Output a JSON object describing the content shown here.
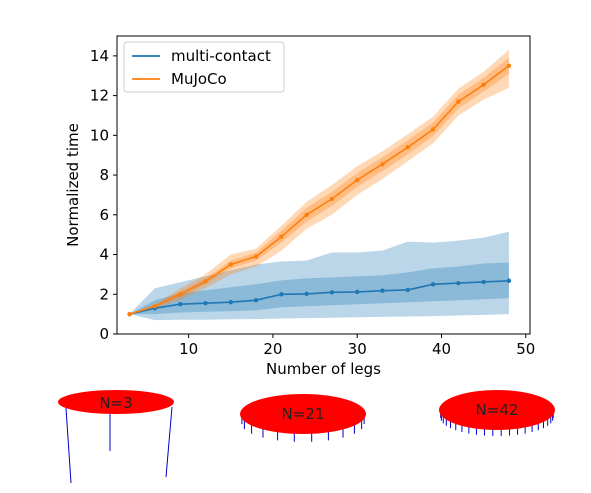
{
  "chart_data": {
    "type": "line",
    "xlabel": "Number of legs",
    "ylabel": "Normalized time",
    "xlim": [
      1.5,
      50.5
    ],
    "ylim": [
      0,
      15
    ],
    "x_ticks": [
      10,
      20,
      30,
      40,
      50
    ],
    "y_ticks": [
      0,
      2,
      4,
      6,
      8,
      10,
      12,
      14
    ],
    "grid": false,
    "legend_position": "upper-left",
    "x": [
      3,
      6,
      9,
      12,
      15,
      18,
      21,
      24,
      27,
      30,
      33,
      36,
      39,
      42,
      45,
      48
    ],
    "series": [
      {
        "name": "multi-contact",
        "color": "#1f77b4",
        "values": [
          1.0,
          1.3,
          1.5,
          1.55,
          1.6,
          1.7,
          2.0,
          2.02,
          2.1,
          2.12,
          2.18,
          2.22,
          2.5,
          2.56,
          2.62,
          2.68
        ],
        "band_inner_low": [
          1.0,
          1.0,
          1.08,
          1.12,
          1.15,
          1.2,
          1.35,
          1.4,
          1.45,
          1.5,
          1.55,
          1.6,
          1.65,
          1.7,
          1.75,
          1.8
        ],
        "band_inner_high": [
          1.0,
          1.7,
          2.05,
          2.2,
          2.35,
          2.5,
          2.7,
          2.8,
          2.85,
          2.9,
          2.95,
          3.1,
          3.3,
          3.4,
          3.55,
          3.6
        ],
        "band_outer_low": [
          1.0,
          0.7,
          0.72,
          0.72,
          0.74,
          0.75,
          0.78,
          0.8,
          0.82,
          0.84,
          0.86,
          0.88,
          0.9,
          0.93,
          0.96,
          1.0
        ],
        "band_outer_high": [
          1.0,
          2.3,
          2.6,
          2.9,
          3.2,
          3.5,
          3.65,
          3.7,
          4.1,
          4.1,
          4.2,
          4.65,
          4.6,
          4.7,
          4.85,
          5.15
        ]
      },
      {
        "name": "MuJoCo",
        "color": "#ff7f0e",
        "values": [
          1.0,
          1.4,
          2.0,
          2.65,
          3.5,
          3.9,
          4.9,
          6.0,
          6.8,
          7.75,
          8.55,
          9.4,
          10.3,
          11.7,
          12.55,
          13.5
        ],
        "band_inner_low": [
          1.0,
          1.35,
          1.85,
          2.5,
          3.3,
          3.7,
          4.6,
          5.65,
          6.45,
          7.4,
          8.2,
          9.05,
          9.95,
          11.35,
          12.2,
          13.1
        ],
        "band_inner_high": [
          1.0,
          1.45,
          2.15,
          2.8,
          3.7,
          4.1,
          5.2,
          6.35,
          7.15,
          8.1,
          8.9,
          9.75,
          10.65,
          12.05,
          12.9,
          13.9
        ],
        "band_outer_low": [
          1.0,
          1.3,
          1.7,
          2.3,
          3.0,
          3.4,
          4.2,
          5.3,
          6.0,
          7.0,
          7.8,
          8.7,
          9.6,
          11.0,
          11.8,
          12.4
        ],
        "band_outer_high": [
          1.0,
          1.5,
          2.3,
          3.0,
          4.0,
          4.3,
          5.45,
          6.65,
          7.5,
          8.45,
          9.2,
          10.05,
          10.95,
          12.35,
          13.2,
          14.3
        ]
      }
    ]
  },
  "illustrations": [
    {
      "label": "N=3",
      "legs": 3,
      "disk_color": "#ff0000",
      "leg_color": "#0000cc"
    },
    {
      "label": "N=21",
      "legs": 21,
      "disk_color": "#ff0000",
      "leg_color": "#0000cc"
    },
    {
      "label": "N=42",
      "legs": 42,
      "disk_color": "#ff0000",
      "leg_color": "#0000cc"
    }
  ]
}
